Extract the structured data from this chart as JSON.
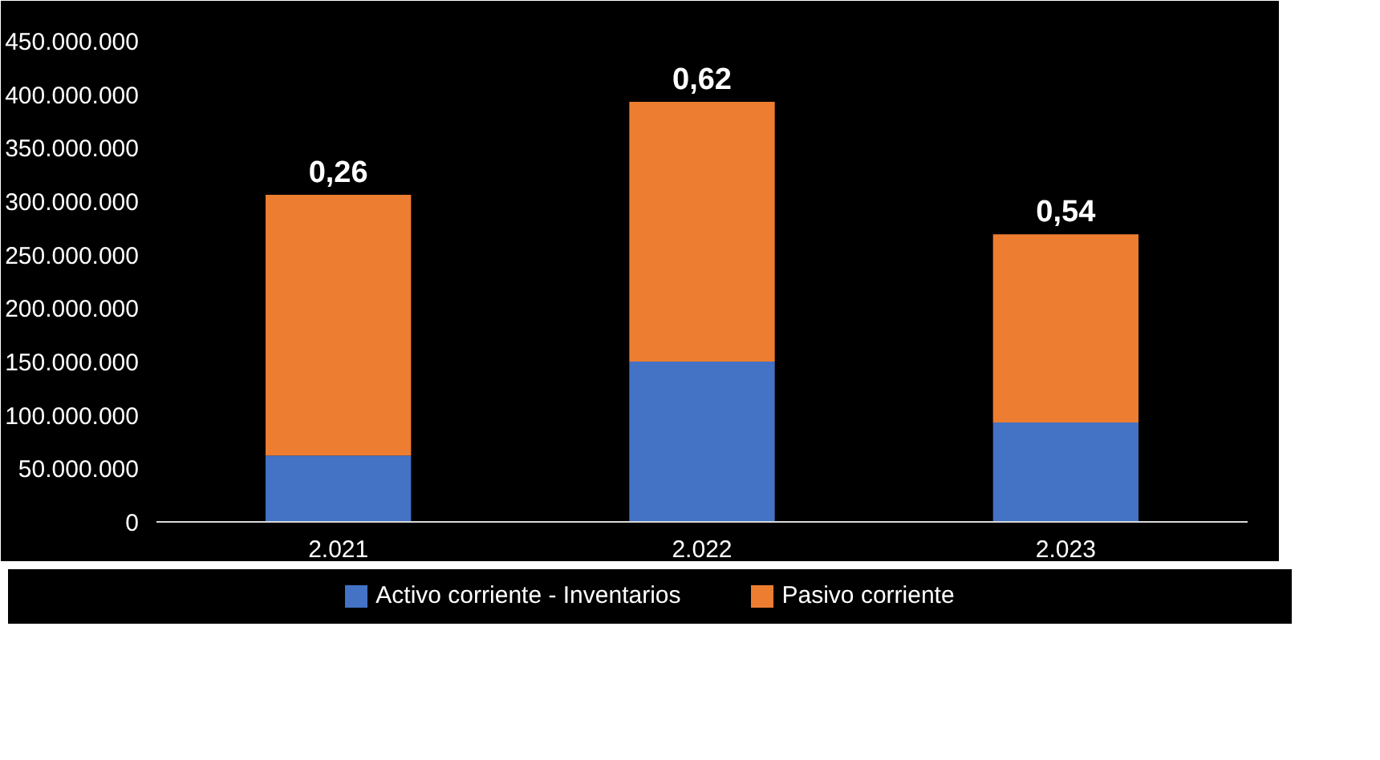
{
  "chart_data": {
    "type": "bar",
    "stacked": true,
    "categories": [
      "2.021",
      "2.022",
      "2.023"
    ],
    "series": [
      {
        "name": "Activo corriente - Inventarios",
        "color": "#4472c4",
        "values": [
          62000000,
          150000000,
          93000000
        ]
      },
      {
        "name": "Pasivo corriente",
        "color": "#ed7d31",
        "values": [
          244000000,
          243000000,
          176000000
        ]
      }
    ],
    "annotations": [
      {
        "text": "0,26",
        "x": "2.021",
        "y": 306000000
      },
      {
        "text": "0,62",
        "x": "2.022",
        "y": 393000000
      },
      {
        "text": "0,54",
        "x": "2.023",
        "y": 269000000
      }
    ],
    "ylim": [
      0,
      450000000
    ],
    "yticks": [
      0,
      {
        "value": 50000000,
        "label": "50.000.000"
      },
      {
        "value": 100000000,
        "label": "100.000.000"
      },
      {
        "value": 150000000,
        "label": "150.000.000"
      },
      {
        "value": 200000000,
        "label": "200.000.000"
      },
      {
        "value": 250000000,
        "label": "250.000.000"
      },
      {
        "value": 300000000,
        "label": "300.000.000"
      },
      {
        "value": 350000000,
        "label": "350.000.000"
      },
      {
        "value": 400000000,
        "label": "400.000.000"
      },
      {
        "value": 450000000,
        "label": "450.000.000"
      }
    ],
    "grid": false,
    "legend": "bottom"
  }
}
